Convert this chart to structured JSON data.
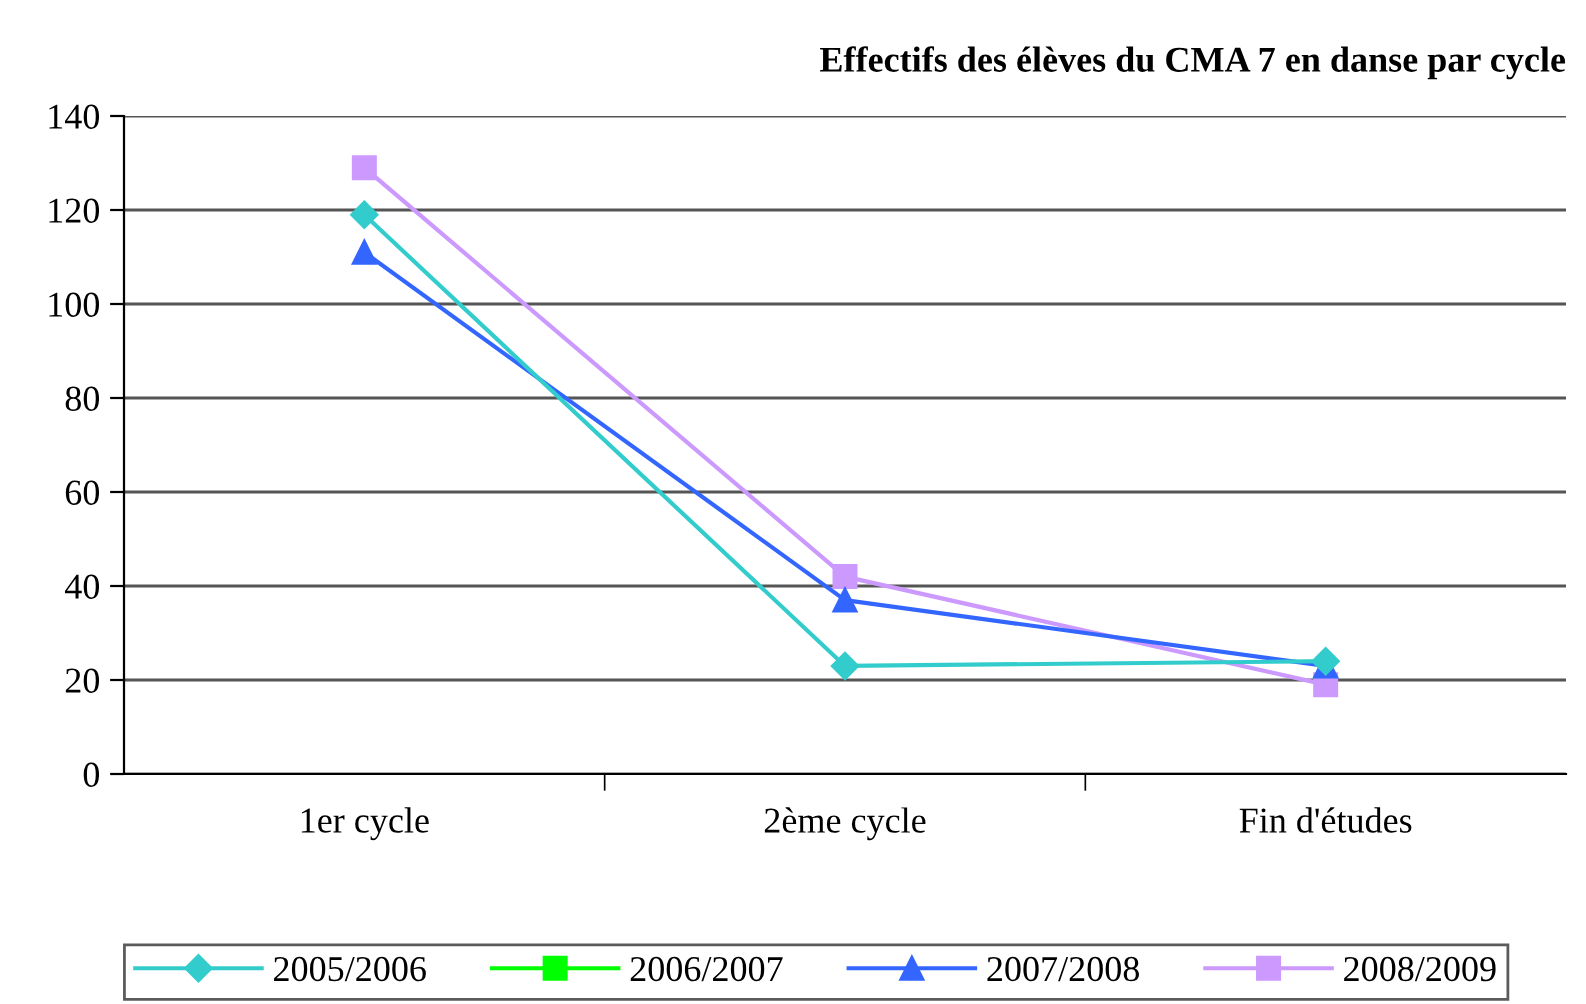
{
  "chart_data": {
    "type": "line",
    "title": "Effectifs des élèves du CMA 7 en danse par cycle",
    "categories": [
      "1er cycle",
      "2ème cycle",
      "Fin d'études"
    ],
    "series": [
      {
        "name": "2005/2006",
        "color": "#33cccc",
        "marker": "diamond",
        "values": [
          119,
          23,
          24
        ]
      },
      {
        "name": "2006/2007",
        "color": "#00ff00",
        "marker": "square",
        "values": [
          null,
          null,
          null
        ]
      },
      {
        "name": "2007/2008",
        "color": "#3366ff",
        "marker": "triangle",
        "values": [
          111,
          37,
          23
        ]
      },
      {
        "name": "2008/2009",
        "color": "#cc99ff",
        "marker": "square",
        "values": [
          129,
          42,
          19
        ]
      }
    ],
    "ylim": [
      0,
      140
    ],
    "yticks": [
      0,
      20,
      40,
      60,
      80,
      100,
      120,
      140
    ],
    "grid": "y",
    "legend": "bottom"
  }
}
